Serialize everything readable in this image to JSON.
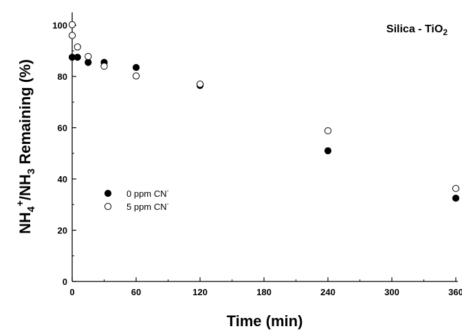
{
  "chart_data": {
    "type": "scatter",
    "title": "",
    "annotation": {
      "text": "Silica - TiO",
      "subscript": "2",
      "placement": "top-right"
    },
    "xlabel": "Time (min)",
    "ylabel": {
      "p1": "NH",
      "p1_sub": "4",
      "p1_sup": "+",
      "p2": "/NH",
      "p2_sub": "3",
      "p3": " Remaining (%)"
    },
    "xlim": [
      0,
      360
    ],
    "ylim": [
      0,
      105
    ],
    "xticks": [
      0,
      60,
      120,
      180,
      240,
      300,
      360
    ],
    "yticks": [
      0,
      20,
      40,
      60,
      80,
      100
    ],
    "grid": false,
    "legend_placement": "lower-left",
    "series": [
      {
        "name": "0 ppm CN",
        "name_sup": "-",
        "marker": "filled-circle",
        "color": "#000000",
        "points": [
          [
            0,
            87.5
          ],
          [
            5,
            87.5
          ],
          [
            15,
            85.5
          ],
          [
            30,
            85.5
          ],
          [
            60,
            83.5
          ],
          [
            120,
            76.5
          ],
          [
            240,
            51
          ],
          [
            360,
            32.5
          ]
        ]
      },
      {
        "name": "5 ppm CN",
        "name_sup": "-",
        "marker": "open-circle",
        "color": "#000000",
        "points": [
          [
            0,
            100.2
          ],
          [
            0,
            96
          ],
          [
            5,
            91.5
          ],
          [
            15,
            87.8
          ],
          [
            30,
            84
          ],
          [
            60,
            80.2
          ],
          [
            120,
            77
          ],
          [
            240,
            58.8
          ],
          [
            360,
            36.3
          ]
        ]
      }
    ]
  }
}
